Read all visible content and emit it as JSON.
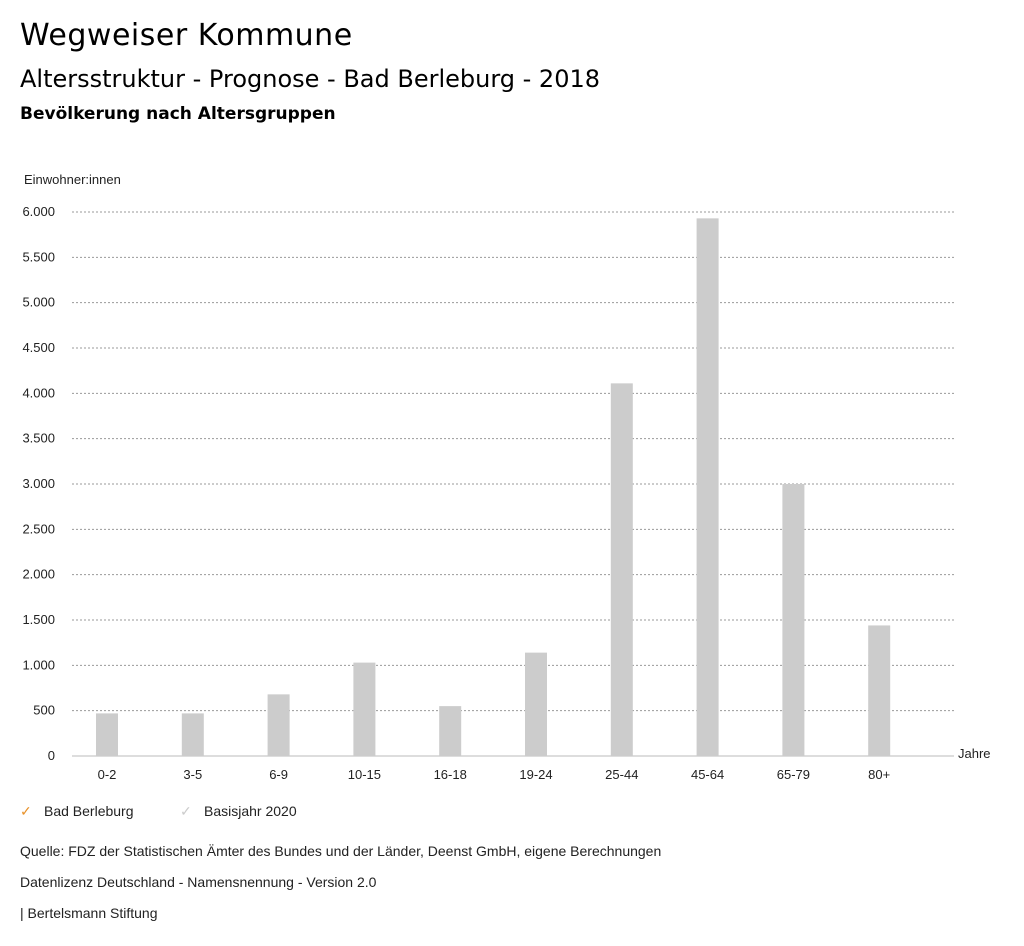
{
  "header": {
    "site": "Wegweiser Kommune",
    "subtitle": "Altersstruktur - Prognose - Bad Berleburg - 2018",
    "section": "Bevölkerung nach Altersgruppen"
  },
  "chart_data": {
    "type": "bar",
    "ylabel": "Einwohner:innen",
    "xlabel": "Jahre",
    "ylim": [
      0,
      6000
    ],
    "yticks": [
      0,
      500,
      1000,
      1500,
      2000,
      2500,
      3000,
      3500,
      4000,
      4500,
      5000,
      5500,
      6000
    ],
    "ytick_labels": [
      "0",
      "500",
      "1.000",
      "1.500",
      "2.000",
      "2.500",
      "3.000",
      "3.500",
      "4.000",
      "4.500",
      "5.000",
      "5.500",
      "6.000"
    ],
    "grid": true,
    "categories": [
      "0-2",
      "3-5",
      "6-9",
      "10-15",
      "16-18",
      "19-24",
      "25-44",
      "45-64",
      "65-79",
      "80+"
    ],
    "series": [
      {
        "name": "Bad Berleburg",
        "values": [
          470,
          470,
          680,
          1030,
          550,
          1140,
          4110,
          5930,
          3000,
          1440
        ],
        "color": "#cccccc"
      }
    ]
  },
  "legend": [
    {
      "label": "Bad Berleburg",
      "color": "#e8922a"
    },
    {
      "label": "Basisjahr 2020",
      "color": "#cccccc"
    }
  ],
  "footer": {
    "source": "Quelle: FDZ der Statistischen Ämter des Bundes und der Länder, Deenst GmbH, eigene Berechnungen",
    "license": "Datenlizenz Deutschland - Namensnennung - Version 2.0",
    "publisher": "| Bertelsmann Stiftung"
  }
}
